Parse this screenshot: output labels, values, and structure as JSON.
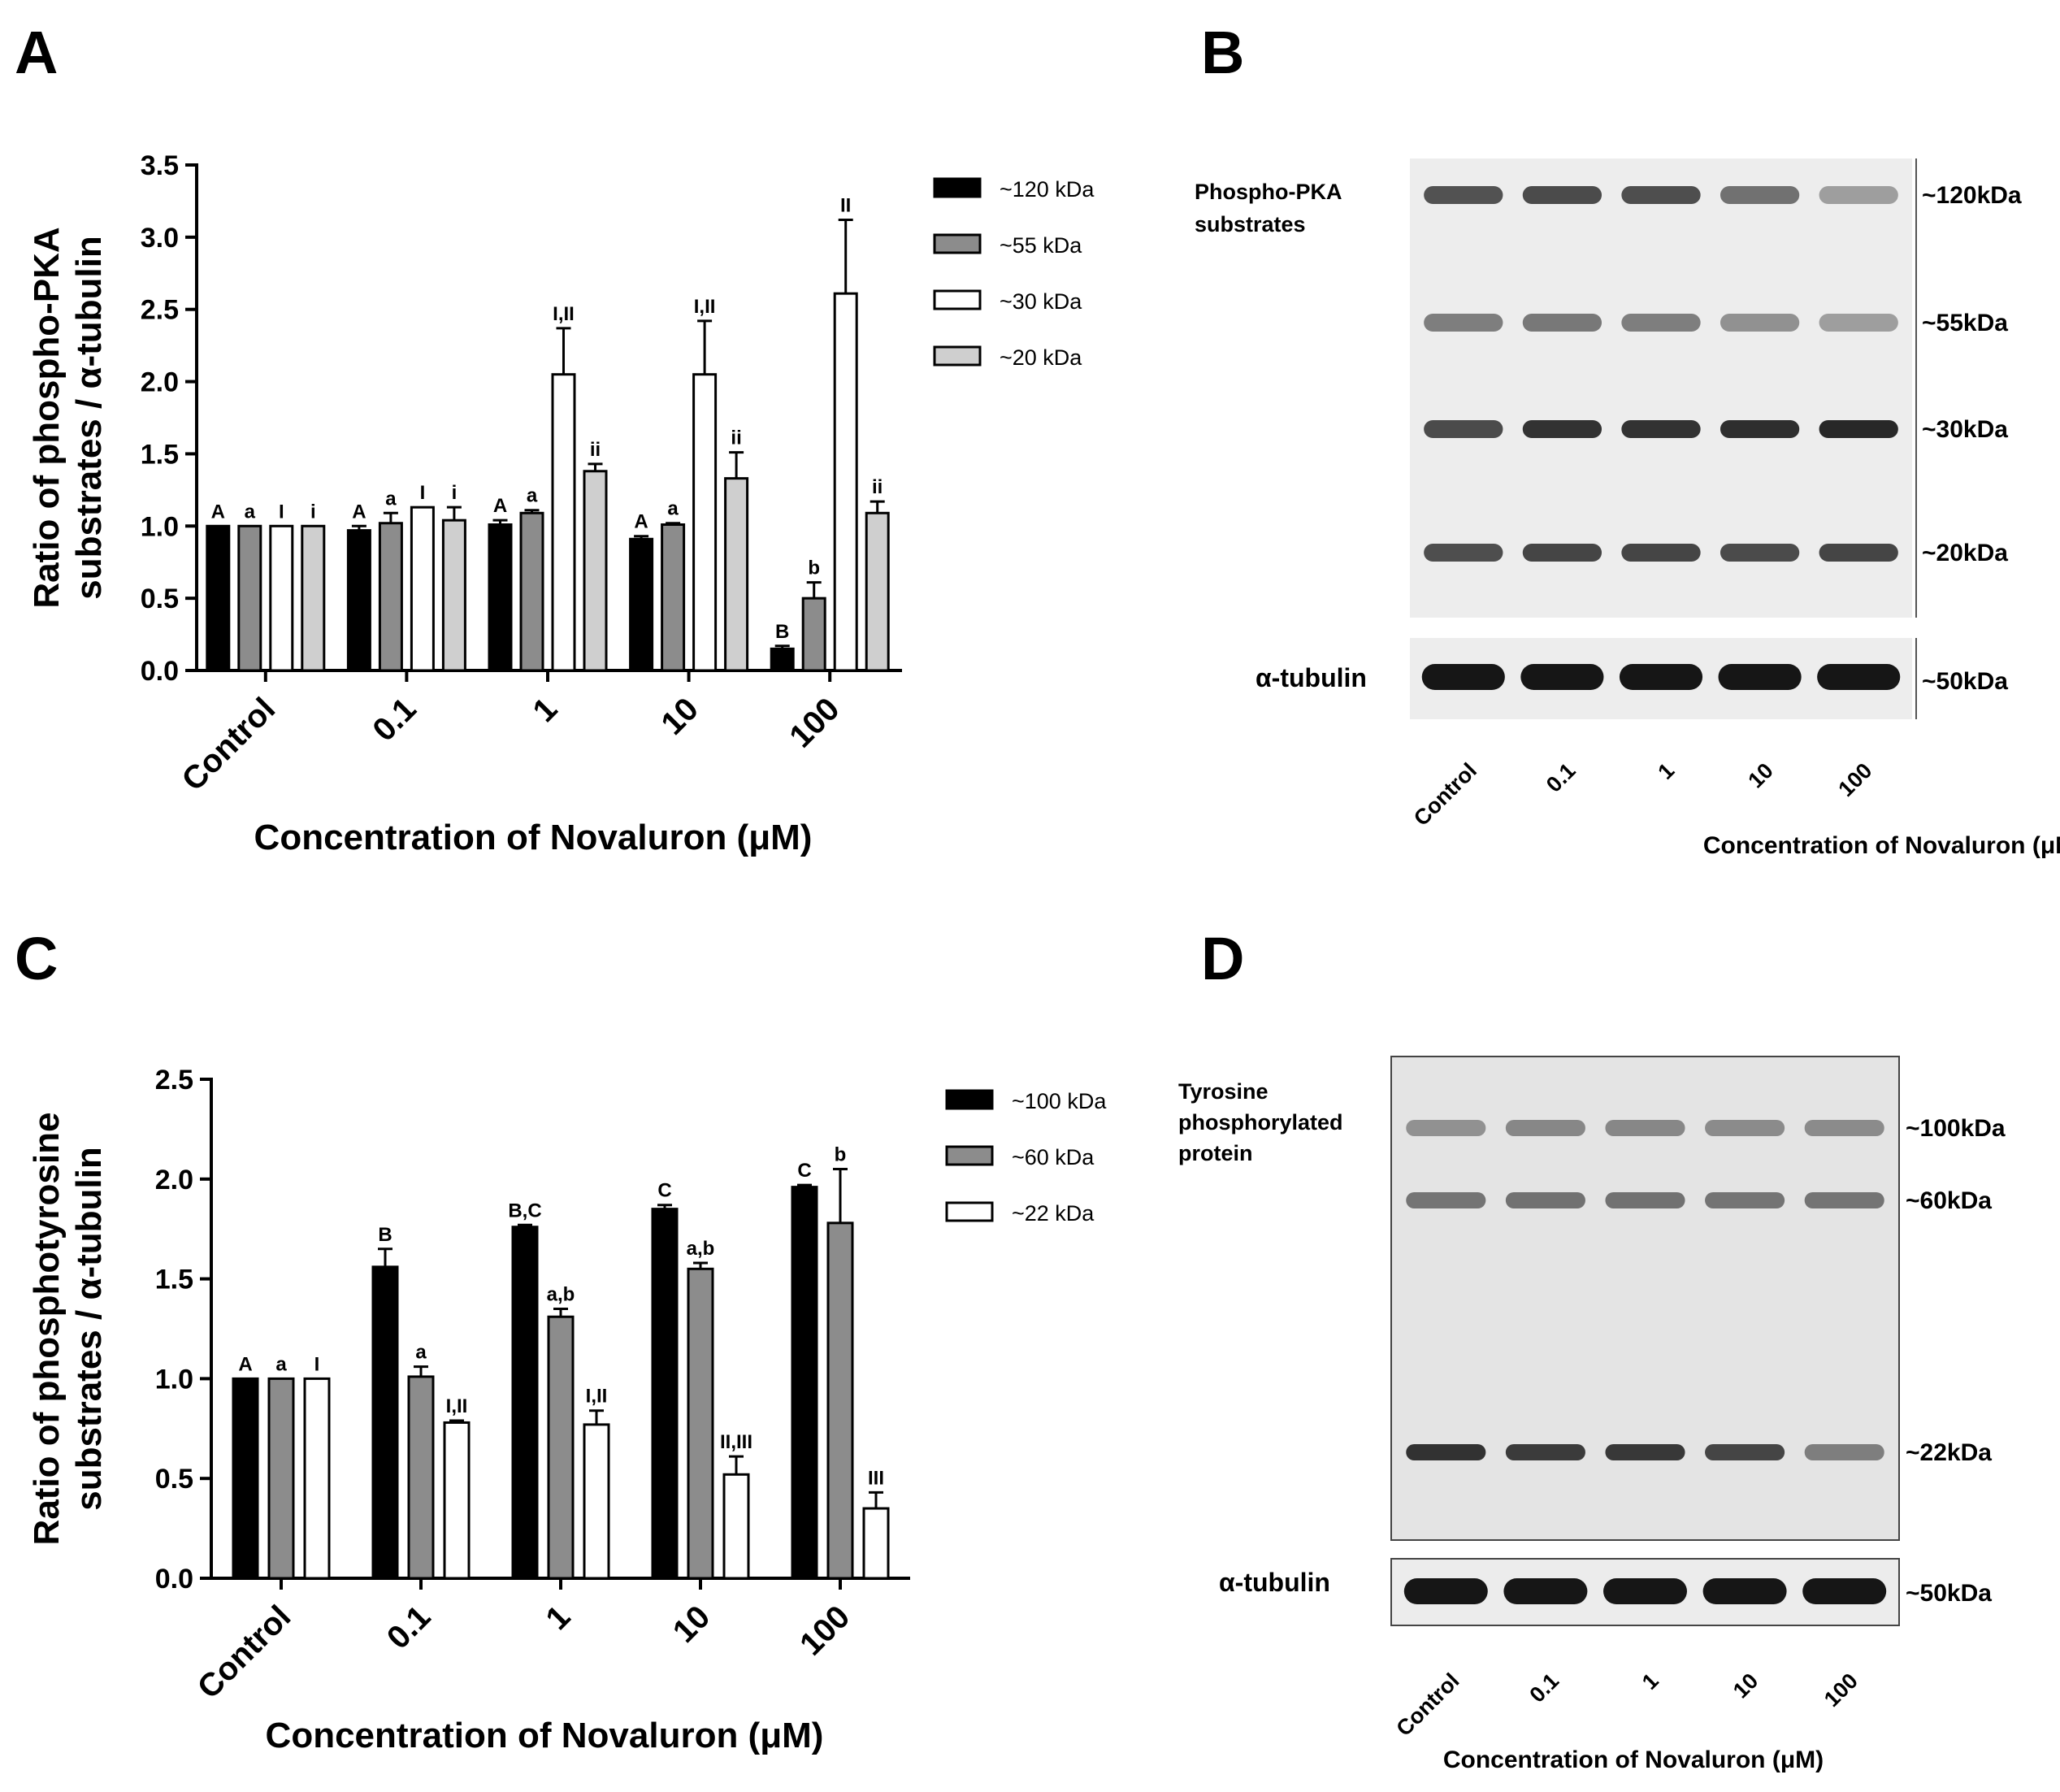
{
  "panels": {
    "A": {
      "label": "A"
    },
    "B": {
      "label": "B"
    },
    "C": {
      "label": "C"
    },
    "D": {
      "label": "D"
    }
  },
  "blot_B": {
    "title": "Phospho-PKA substrates",
    "title_lines": [
      "Phospho-PKA",
      "substrates"
    ],
    "band_labels": [
      "~120kDa",
      "~55kDa",
      "~30kDa",
      "~20kDa"
    ],
    "band_intensity": [
      [
        0.78,
        0.82,
        0.8,
        0.62,
        0.38
      ],
      [
        0.55,
        0.58,
        0.55,
        0.45,
        0.38
      ],
      [
        0.82,
        0.95,
        0.95,
        0.97,
        1.0
      ],
      [
        0.8,
        0.85,
        0.85,
        0.82,
        0.85
      ]
    ],
    "loading_label": "α-tubulin",
    "loading_kda": "~50kDa",
    "lanes": [
      "Control",
      "0.1",
      "1",
      "10",
      "100"
    ],
    "xlabel": "Concentration of Novaluron (μM)"
  },
  "blot_D": {
    "title": "Tyrosine phosphorylated protein",
    "title_lines": [
      "Tyrosine",
      "phosphorylated",
      "protein"
    ],
    "band_labels": [
      "~100kDa",
      "~60kDa",
      "~22kDa"
    ],
    "band_intensity": [
      [
        0.45,
        0.5,
        0.5,
        0.48,
        0.48
      ],
      [
        0.6,
        0.62,
        0.62,
        0.6,
        0.6
      ],
      [
        0.95,
        0.9,
        0.92,
        0.85,
        0.55
      ]
    ],
    "loading_label": "α-tubulin",
    "loading_kda": "~50kDa",
    "lanes": [
      "Control",
      "0.1",
      "1",
      "10",
      "100"
    ],
    "xlabel": "Concentration of Novaluron (μM)"
  },
  "chart_data": [
    {
      "type": "bar",
      "panel": "A",
      "categories": [
        "Control",
        "0.1",
        "1",
        "10",
        "100"
      ],
      "xlabel": "Concentration of Novaluron (μM)",
      "ylabel_lines": [
        "Ratio of phospho-PKA",
        "substrates / α-tubulin"
      ],
      "ylim": [
        0,
        3.5
      ],
      "yticks": [
        "0.0",
        "0.5",
        "1.0",
        "1.5",
        "2.0",
        "2.5",
        "3.0",
        "3.5"
      ],
      "legend_position": "right",
      "series": [
        {
          "name": "~120 kDa",
          "color": "#000000",
          "values": [
            1.0,
            0.97,
            1.01,
            0.91,
            0.15
          ],
          "errors": [
            0.0,
            0.03,
            0.03,
            0.02,
            0.02
          ],
          "letters": [
            "A",
            "A",
            "A",
            "A",
            "B"
          ]
        },
        {
          "name": "~55 kDa",
          "color": "#8c8c8c",
          "values": [
            1.0,
            1.02,
            1.09,
            1.01,
            0.5
          ],
          "errors": [
            0.0,
            0.07,
            0.02,
            0.01,
            0.11
          ],
          "letters": [
            "a",
            "a",
            "a",
            "a",
            "b"
          ]
        },
        {
          "name": "~30 kDa",
          "color": "#ffffff",
          "values": [
            1.0,
            1.13,
            2.05,
            2.05,
            2.61
          ],
          "errors": [
            0.0,
            0.0,
            0.32,
            0.37,
            0.51
          ],
          "letters": [
            "I",
            "I",
            "I,II",
            "I,II",
            "II"
          ]
        },
        {
          "name": "~20 kDa",
          "color": "#cfcfcf",
          "values": [
            1.0,
            1.04,
            1.38,
            1.33,
            1.09
          ],
          "errors": [
            0.0,
            0.09,
            0.05,
            0.18,
            0.08
          ],
          "letters": [
            "i",
            "i",
            "ii",
            "ii",
            "ii"
          ]
        }
      ]
    },
    {
      "type": "bar",
      "panel": "C",
      "categories": [
        "Control",
        "0.1",
        "1",
        "10",
        "100"
      ],
      "xlabel": "Concentration of Novaluron (μM)",
      "ylabel_lines": [
        "Ratio of phosphotyrosine",
        "substrates / α-tubulin"
      ],
      "ylim": [
        0,
        2.5
      ],
      "yticks": [
        "0.0",
        "0.5",
        "1.0",
        "1.5",
        "2.0",
        "2.5"
      ],
      "legend_position": "right",
      "series": [
        {
          "name": "~100 kDa",
          "color": "#000000",
          "values": [
            1.0,
            1.56,
            1.76,
            1.85,
            1.96
          ],
          "errors": [
            0.0,
            0.09,
            0.01,
            0.02,
            0.01
          ],
          "letters": [
            "A",
            "B",
            "B,C",
            "C",
            "C"
          ]
        },
        {
          "name": "~60 kDa",
          "color": "#8c8c8c",
          "values": [
            1.0,
            1.01,
            1.31,
            1.55,
            1.78
          ],
          "errors": [
            0.0,
            0.05,
            0.04,
            0.03,
            0.27
          ],
          "letters": [
            "a",
            "a",
            "a,b",
            "a,b",
            "b"
          ]
        },
        {
          "name": "~22 kDa",
          "color": "#ffffff",
          "values": [
            1.0,
            0.78,
            0.77,
            0.52,
            0.35
          ],
          "errors": [
            0.0,
            0.01,
            0.07,
            0.09,
            0.08
          ],
          "letters": [
            "I",
            "I,II",
            "I,II",
            "II,III",
            "III"
          ]
        }
      ]
    }
  ]
}
